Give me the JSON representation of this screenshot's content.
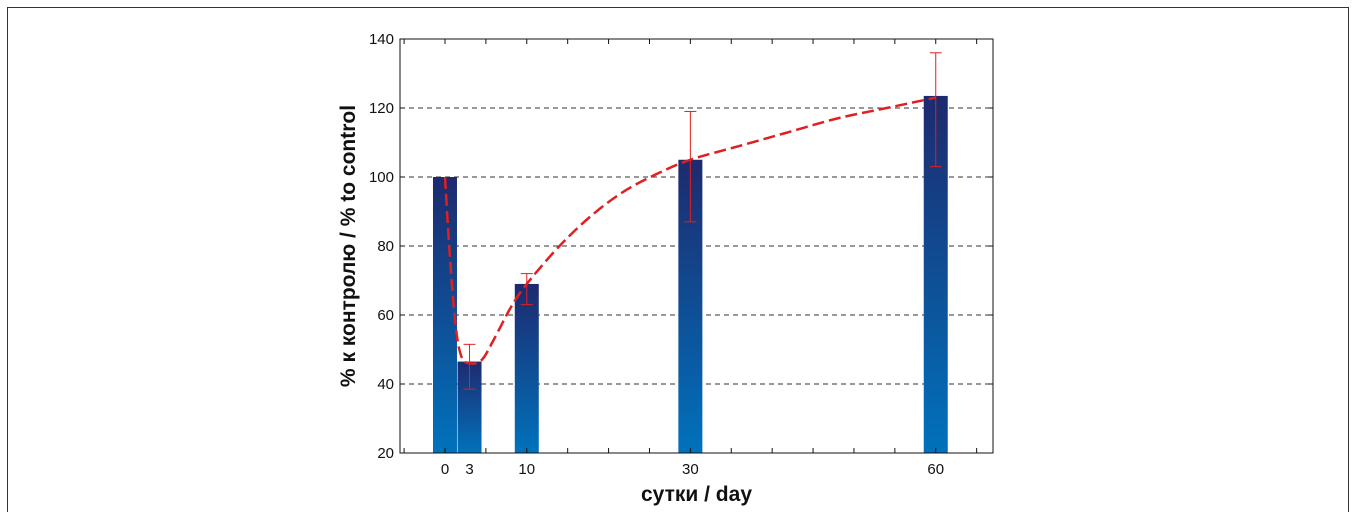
{
  "chart_data": {
    "type": "bar",
    "title": "",
    "xlabel": "сутки / day",
    "ylabel": "% к контролю / % to control",
    "x": [
      0,
      3,
      10,
      30,
      60
    ],
    "x_tick_labels": [
      "0",
      "3",
      "10",
      "30",
      "60"
    ],
    "xlim": [
      -5.5,
      67
    ],
    "ylim": [
      20,
      140
    ],
    "y_ticks": [
      20,
      40,
      60,
      80,
      100,
      120,
      140
    ],
    "grid": "horizontal dashed",
    "series": [
      {
        "values": [
          100,
          46.5,
          69,
          105,
          123.5
        ],
        "error_low": [
          null,
          38.5,
          63,
          87,
          103
        ],
        "error_high": [
          null,
          51.5,
          72,
          119,
          136
        ]
      }
    ],
    "trend_curve": {
      "style": "red dashed smooth line",
      "points": [
        [
          0,
          100
        ],
        [
          0.6,
          77
        ],
        [
          1.3,
          57
        ],
        [
          2,
          48
        ],
        [
          3,
          46
        ],
        [
          4.5,
          47
        ],
        [
          6,
          53
        ],
        [
          8,
          62
        ],
        [
          10,
          69
        ],
        [
          14,
          80
        ],
        [
          18,
          89
        ],
        [
          22,
          96
        ],
        [
          26,
          101
        ],
        [
          30,
          105
        ],
        [
          36,
          109
        ],
        [
          42,
          113
        ],
        [
          48,
          117
        ],
        [
          54,
          120
        ],
        [
          60,
          123
        ]
      ]
    },
    "colors": {
      "bar_top": "#1e2a6e",
      "bar_bottom": "#0072bc",
      "error_bar": "#e02020",
      "trend": "#e02020",
      "grid": "#333333"
    }
  }
}
